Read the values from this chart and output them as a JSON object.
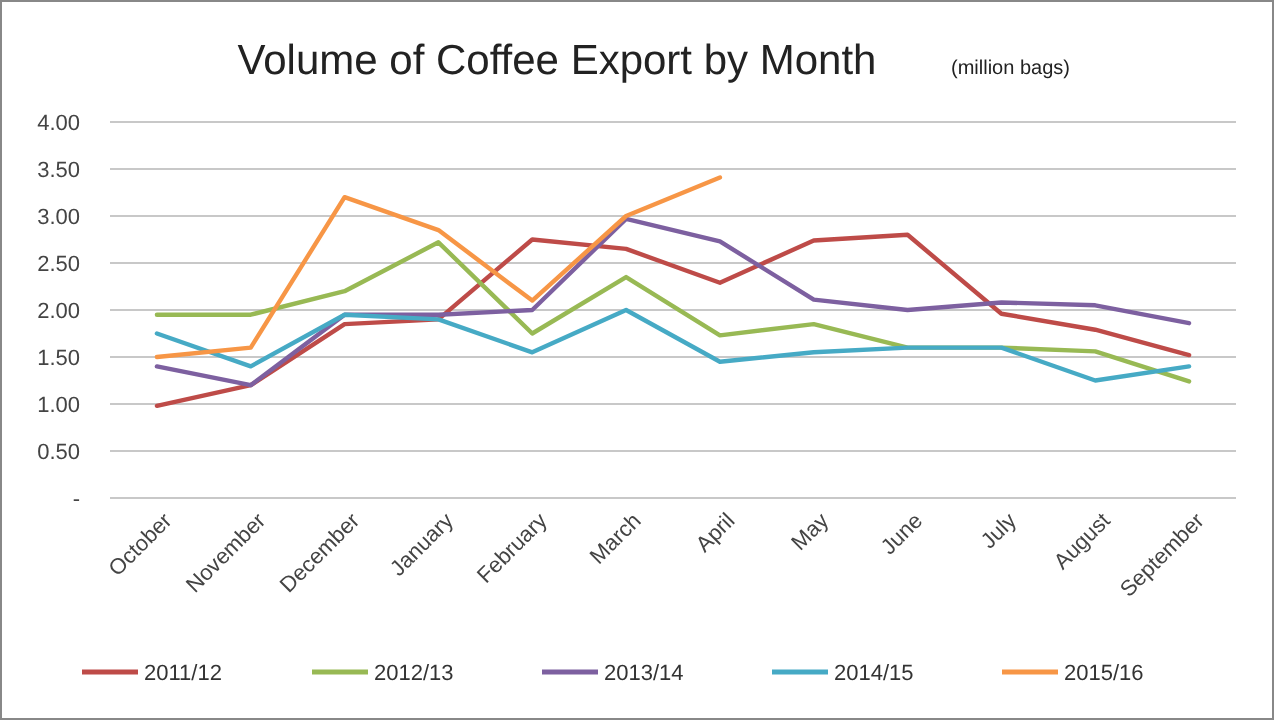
{
  "chart_data": {
    "type": "line",
    "title": "Volume of Coffee Export by Month",
    "subtitle": "(million bags)",
    "categories": [
      "October",
      "November",
      "December",
      "January",
      "February",
      "March",
      "April",
      "May",
      "June",
      "July",
      "August",
      "September"
    ],
    "series": [
      {
        "name": "2011/12",
        "color": "#be4b48",
        "values": [
          0.98,
          1.2,
          1.85,
          1.9,
          2.75,
          2.65,
          2.29,
          2.74,
          2.8,
          1.96,
          1.79,
          1.52
        ]
      },
      {
        "name": "2012/13",
        "color": "#98b954",
        "values": [
          1.95,
          1.95,
          2.2,
          2.72,
          1.75,
          2.35,
          1.73,
          1.85,
          1.6,
          1.6,
          1.56,
          1.24
        ]
      },
      {
        "name": "2013/14",
        "color": "#7d60a0",
        "values": [
          1.4,
          1.2,
          1.95,
          1.95,
          2.0,
          2.97,
          2.73,
          2.11,
          2.0,
          2.08,
          2.05,
          1.86
        ]
      },
      {
        "name": "2014/15",
        "color": "#46aac5",
        "values": [
          1.75,
          1.4,
          1.95,
          1.9,
          1.55,
          2.0,
          1.45,
          1.55,
          1.6,
          1.6,
          1.25,
          1.4
        ]
      },
      {
        "name": "2015/16",
        "color": "#f79646",
        "values": [
          1.5,
          1.6,
          3.2,
          2.85,
          2.1,
          3.0,
          3.41,
          null,
          null,
          null,
          null,
          null
        ]
      }
    ],
    "ylim": [
      0,
      4
    ],
    "yticks": [
      {
        "value": 0,
        "label": "-"
      },
      {
        "value": 0.5,
        "label": "0.50"
      },
      {
        "value": 1,
        "label": "1.00"
      },
      {
        "value": 1.5,
        "label": "1.50"
      },
      {
        "value": 2,
        "label": "2.00"
      },
      {
        "value": 2.5,
        "label": "2.50"
      },
      {
        "value": 3,
        "label": "3.00"
      },
      {
        "value": 3.5,
        "label": "3.50"
      },
      {
        "value": 4,
        "label": "4.00"
      }
    ],
    "grid": "y",
    "legend": "bottom",
    "marker": "none",
    "line_style": "solid"
  }
}
